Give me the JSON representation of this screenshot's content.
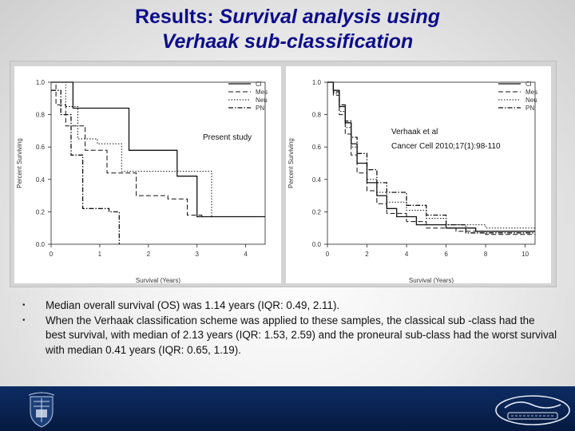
{
  "title": {
    "line1_prefix": "Results: ",
    "line1_italic": "Survival analysis using",
    "line2": "Verhaak sub-classification"
  },
  "legend": [
    "Cl",
    "Mes",
    "Neu",
    "PN"
  ],
  "left_plot": {
    "annotation": "Present study",
    "ylabel": "Percent Surviving",
    "xlabel": "Survival (Years)",
    "yticks": [
      "0.0",
      "0.2",
      "0.4",
      "0.6",
      "0.8",
      "1.0"
    ],
    "xticks": [
      "0",
      "1",
      "2",
      "3",
      "4"
    ]
  },
  "right_plot": {
    "annotation_line1": "Verhaak et al",
    "annotation_line2": "Cancer Cell 2010;17(1):98-110",
    "ylabel": "Percent Surviving",
    "xlabel": "Survival (Years)",
    "yticks": [
      "0.0",
      "0.2",
      "0.4",
      "0.6",
      "0.8",
      "1.0"
    ],
    "xticks": [
      "0",
      "2",
      "4",
      "6",
      "8",
      "10"
    ]
  },
  "chart_data": [
    {
      "type": "line",
      "step": true,
      "title": "Present study",
      "xlabel": "Survival (Years)",
      "ylabel": "Percent Surviving",
      "xlim": [
        0,
        4.4
      ],
      "ylim": [
        0,
        1.0
      ],
      "series": [
        {
          "name": "Cl",
          "x": [
            0,
            0.2,
            0.45,
            1.1,
            1.6,
            2.13,
            2.59,
            3.0,
            4.4
          ],
          "y": [
            1.0,
            1.0,
            0.84,
            0.84,
            0.58,
            0.58,
            0.42,
            0.17,
            0.17
          ]
        },
        {
          "name": "Mes",
          "x": [
            0,
            0.1,
            0.3,
            0.7,
            1.15,
            1.75,
            2.4,
            2.8,
            3.1,
            4.4
          ],
          "y": [
            1.0,
            0.86,
            0.73,
            0.58,
            0.44,
            0.3,
            0.28,
            0.18,
            0.17,
            0.17
          ]
        },
        {
          "name": "Neu",
          "x": [
            0,
            0.3,
            0.55,
            0.95,
            1.45,
            2.2,
            3.0,
            3.3
          ],
          "y": [
            1.0,
            0.85,
            0.65,
            0.62,
            0.45,
            0.45,
            0.45,
            0.17
          ]
        },
        {
          "name": "PN",
          "x": [
            0,
            0.2,
            0.41,
            0.65,
            1.19,
            1.4
          ],
          "y": [
            0.95,
            0.8,
            0.55,
            0.22,
            0.2,
            0.0
          ]
        }
      ]
    },
    {
      "type": "line",
      "step": true,
      "title": "Verhaak et al Cancer Cell 2010;17(1):98-110",
      "xlabel": "Survival (Years)",
      "ylabel": "Percent Surviving",
      "xlim": [
        0,
        10.5
      ],
      "ylim": [
        0,
        1.0
      ],
      "series": [
        {
          "name": "Cl",
          "x": [
            0,
            0.3,
            0.6,
            0.9,
            1.2,
            1.5,
            2.0,
            2.5,
            3.0,
            3.5,
            4.5,
            6.0,
            7.5,
            10.5
          ],
          "y": [
            1.0,
            0.95,
            0.85,
            0.75,
            0.62,
            0.5,
            0.38,
            0.3,
            0.22,
            0.17,
            0.12,
            0.1,
            0.08,
            0.08
          ]
        },
        {
          "name": "Mes",
          "x": [
            0,
            0.3,
            0.6,
            0.9,
            1.2,
            1.5,
            2.0,
            2.5,
            3.0,
            4.0,
            5.0,
            6.5,
            8.0,
            10.5
          ],
          "y": [
            1.0,
            0.92,
            0.8,
            0.68,
            0.55,
            0.44,
            0.33,
            0.25,
            0.19,
            0.14,
            0.1,
            0.08,
            0.06,
            0.06
          ]
        },
        {
          "name": "Neu",
          "x": [
            0,
            0.3,
            0.6,
            0.9,
            1.2,
            1.5,
            2.0,
            2.5,
            3.0,
            4.0,
            5.0,
            6.0,
            8.0,
            10.5
          ],
          "y": [
            1.0,
            0.93,
            0.82,
            0.72,
            0.6,
            0.5,
            0.4,
            0.32,
            0.26,
            0.21,
            0.16,
            0.12,
            0.1,
            0.1
          ]
        },
        {
          "name": "PN",
          "x": [
            0,
            0.3,
            0.6,
            0.9,
            1.2,
            1.5,
            2.0,
            2.5,
            3.0,
            4.0,
            5.0,
            6.0,
            7.0,
            10.5
          ],
          "y": [
            1.0,
            0.94,
            0.86,
            0.76,
            0.66,
            0.56,
            0.46,
            0.38,
            0.32,
            0.24,
            0.18,
            0.12,
            0.07,
            0.07
          ]
        }
      ]
    }
  ],
  "bullets": [
    "Median overall survival (OS) was 1.14 years (IQR: 0.49, 2.11).",
    "When the Verhaak classification scheme was applied to these samples, the classical sub -class had the best survival, with median of 2.13 years (IQR: 1.53, 2.59) and the proneural sub-class had the worst survival with median 0.41 years (IQR: 0.65, 1.19)."
  ],
  "bullet_symbol": "•",
  "colors": {
    "title": "#0d0d8c",
    "footer": "#0d2c63",
    "figure_frame": "#d4d4d4"
  },
  "icons": {
    "left_logo": "henry-ford-crest-icon",
    "right_logo": "henry-ford-health-system-logo-icon"
  }
}
